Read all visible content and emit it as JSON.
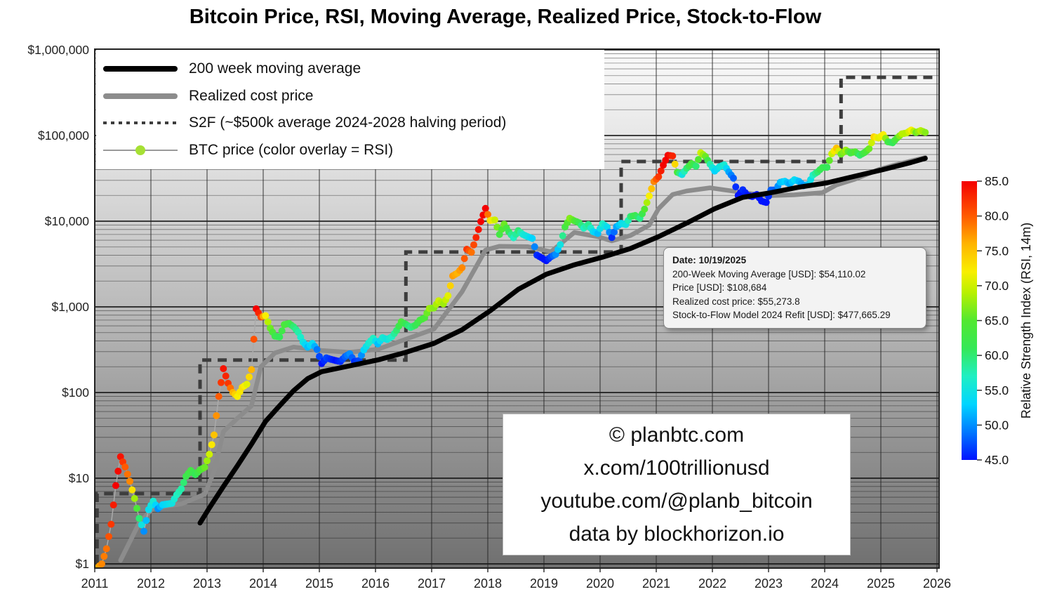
{
  "title": "Bitcoin Price, RSI, Moving Average, Realized Price, Stock-to-Flow",
  "legend": {
    "items": [
      {
        "label": "200 week moving average",
        "sample": "thick-black"
      },
      {
        "label": "Realized cost price",
        "sample": "thick-gray"
      },
      {
        "label": "S2F (~$500k average 2024-2028 halving period)",
        "sample": "dotted"
      },
      {
        "label": "BTC price (color overlay = RSI)",
        "sample": "dot-line"
      }
    ]
  },
  "tooltip": {
    "lines": [
      "Date: 10/19/2025",
      "200-Week Moving Average [USD]: $54,110.02",
      "Price [USD]: $108,684",
      "Realized cost price: $55,273.8",
      "Stock-to-Flow Model 2024 Refit [USD]: $477,665.29"
    ]
  },
  "watermark": {
    "lines": [
      "© planbtc.com",
      "x.com/100trillionusd",
      "youtube.com/@planb_bitcoin",
      "data by blockhorizon.io"
    ]
  },
  "colorbar": {
    "label": "Relative Strength Index (RSI, 14m)",
    "ticks": [
      "85.0",
      "80.0",
      "75.0",
      "70.0",
      "65.0",
      "60.0",
      "55.0",
      "50.0",
      "45.0"
    ],
    "min": 45,
    "max": 85
  },
  "chart_data": {
    "type": "scatter",
    "title": "Bitcoin Price, RSI, Moving Average, Realized Price, Stock-to-Flow",
    "log_y": true,
    "xlim": [
      2011,
      2026
    ],
    "ylim": [
      1,
      1000000
    ],
    "x_ticks": [
      2011,
      2012,
      2013,
      2014,
      2015,
      2016,
      2017,
      2018,
      2019,
      2020,
      2021,
      2022,
      2023,
      2024,
      2025,
      2026
    ],
    "y_ticks": [
      {
        "label": "$1,000,000",
        "value": 1000000
      },
      {
        "label": "$100,000",
        "value": 100000
      },
      {
        "label": "$10,000",
        "value": 10000
      },
      {
        "label": "$1,000",
        "value": 1000
      },
      {
        "label": "$100",
        "value": 100
      },
      {
        "label": "$10",
        "value": 10
      },
      {
        "label": "$1",
        "value": 1
      }
    ],
    "rsi_colormap": [
      {
        "v": 45,
        "c": "#0013ff"
      },
      {
        "v": 49,
        "c": "#0078ff"
      },
      {
        "v": 53,
        "c": "#00d5ff"
      },
      {
        "v": 57,
        "c": "#1fefc3"
      },
      {
        "v": 61,
        "c": "#35e858"
      },
      {
        "v": 65,
        "c": "#52e830"
      },
      {
        "v": 69,
        "c": "#b8f000"
      },
      {
        "v": 72,
        "c": "#f8ef00"
      },
      {
        "v": 76,
        "c": "#ffb400"
      },
      {
        "v": 80,
        "c": "#ff5a00"
      },
      {
        "v": 85,
        "c": "#f40000"
      }
    ],
    "btc_monthly": [
      [
        "2011-01",
        0.9,
        76
      ],
      [
        "2011-02",
        1.0,
        78
      ],
      [
        "2011-03",
        1.5,
        79
      ],
      [
        "2011-04",
        2.9,
        82
      ],
      [
        "2011-05",
        8.2,
        85
      ],
      [
        "2011-06",
        17.8,
        84
      ],
      [
        "2011-07",
        13.5,
        80
      ],
      [
        "2011-08",
        9.2,
        78
      ],
      [
        "2011-09",
        5.8,
        68
      ],
      [
        "2011-10",
        3.4,
        60
      ],
      [
        "2011-11",
        2.4,
        50
      ],
      [
        "2011-12",
        4.3,
        54
      ],
      [
        "2012-01",
        5.4,
        56
      ],
      [
        "2012-02",
        4.4,
        50
      ],
      [
        "2012-03",
        4.9,
        53
      ],
      [
        "2012-04",
        5.0,
        54
      ],
      [
        "2012-05",
        5.1,
        55
      ],
      [
        "2012-06",
        6.4,
        57
      ],
      [
        "2012-07",
        7.5,
        58
      ],
      [
        "2012-08",
        10.5,
        62
      ],
      [
        "2012-09",
        12.3,
        63
      ],
      [
        "2012-10",
        11.0,
        61
      ],
      [
        "2012-11",
        12.5,
        64
      ],
      [
        "2012-12",
        13.4,
        66
      ],
      [
        "2013-01",
        19,
        70
      ],
      [
        "2013-02",
        32,
        75
      ],
      [
        "2013-03",
        90,
        80
      ],
      [
        "2013-04",
        190,
        84
      ],
      [
        "2013-05",
        128,
        82
      ],
      [
        "2013-06",
        100,
        76
      ],
      [
        "2013-07",
        90,
        72
      ],
      [
        "2013-08",
        115,
        73
      ],
      [
        "2013-09",
        125,
        71
      ],
      [
        "2013-10",
        185,
        76
      ],
      [
        "2013-11",
        950,
        85
      ],
      [
        "2013-12",
        760,
        81
      ],
      [
        "2014-01",
        790,
        72
      ],
      [
        "2014-02",
        565,
        66
      ],
      [
        "2014-03",
        455,
        62
      ],
      [
        "2014-04",
        445,
        61
      ],
      [
        "2014-05",
        620,
        64
      ],
      [
        "2014-06",
        640,
        63
      ],
      [
        "2014-07",
        585,
        60
      ],
      [
        "2014-08",
        505,
        58
      ],
      [
        "2014-09",
        388,
        55
      ],
      [
        "2014-10",
        338,
        52
      ],
      [
        "2014-11",
        375,
        54
      ],
      [
        "2014-12",
        318,
        49
      ],
      [
        "2015-01",
        218,
        45
      ],
      [
        "2015-02",
        254,
        47
      ],
      [
        "2015-03",
        244,
        46
      ],
      [
        "2015-04",
        236,
        45
      ],
      [
        "2015-05",
        230,
        46
      ],
      [
        "2015-06",
        263,
        48
      ],
      [
        "2015-07",
        284,
        50
      ],
      [
        "2015-08",
        230,
        46
      ],
      [
        "2015-09",
        236,
        47
      ],
      [
        "2015-10",
        314,
        53
      ],
      [
        "2015-11",
        377,
        56
      ],
      [
        "2015-12",
        430,
        57
      ],
      [
        "2016-01",
        370,
        52
      ],
      [
        "2016-02",
        437,
        56
      ],
      [
        "2016-03",
        416,
        55
      ],
      [
        "2016-04",
        448,
        57
      ],
      [
        "2016-05",
        530,
        60
      ],
      [
        "2016-06",
        670,
        64
      ],
      [
        "2016-07",
        625,
        61
      ],
      [
        "2016-08",
        575,
        59
      ],
      [
        "2016-09",
        610,
        61
      ],
      [
        "2016-10",
        700,
        63
      ],
      [
        "2016-11",
        745,
        64
      ],
      [
        "2016-12",
        960,
        68
      ],
      [
        "2017-01",
        970,
        67
      ],
      [
        "2017-02",
        1180,
        70
      ],
      [
        "2017-03",
        1080,
        68
      ],
      [
        "2017-04",
        1350,
        71
      ],
      [
        "2017-05",
        2300,
        77
      ],
      [
        "2017-06",
        2480,
        76
      ],
      [
        "2017-07",
        2860,
        78
      ],
      [
        "2017-08",
        4700,
        82
      ],
      [
        "2017-09",
        4340,
        79
      ],
      [
        "2017-10",
        6450,
        83
      ],
      [
        "2017-11",
        9900,
        85
      ],
      [
        "2017-12",
        14100,
        85
      ],
      [
        "2018-01",
        10200,
        73
      ],
      [
        "2018-02",
        10350,
        70
      ],
      [
        "2018-03",
        7000,
        63
      ],
      [
        "2018-04",
        9240,
        66
      ],
      [
        "2018-05",
        7500,
        61
      ],
      [
        "2018-06",
        6400,
        57
      ],
      [
        "2018-07",
        7750,
        60
      ],
      [
        "2018-08",
        7000,
        56
      ],
      [
        "2018-09",
        6600,
        55
      ],
      [
        "2018-10",
        6300,
        53
      ],
      [
        "2018-11",
        4020,
        46
      ],
      [
        "2018-12",
        3740,
        45
      ],
      [
        "2019-01",
        3460,
        45
      ],
      [
        "2019-02",
        3850,
        47
      ],
      [
        "2019-03",
        4100,
        50
      ],
      [
        "2019-04",
        5320,
        55
      ],
      [
        "2019-05",
        8560,
        63
      ],
      [
        "2019-06",
        10800,
        67
      ],
      [
        "2019-07",
        10090,
        65
      ],
      [
        "2019-08",
        9600,
        62
      ],
      [
        "2019-09",
        8290,
        57
      ],
      [
        "2019-10",
        9150,
        59
      ],
      [
        "2019-11",
        7560,
        54
      ],
      [
        "2019-12",
        7190,
        52
      ],
      [
        "2020-01",
        9350,
        57
      ],
      [
        "2020-02",
        8540,
        54
      ],
      [
        "2020-03",
        6440,
        46
      ],
      [
        "2020-04",
        8640,
        51
      ],
      [
        "2020-05",
        9450,
        54
      ],
      [
        "2020-06",
        9140,
        55
      ],
      [
        "2020-07",
        11350,
        60
      ],
      [
        "2020-08",
        11650,
        62
      ],
      [
        "2020-09",
        10780,
        59
      ],
      [
        "2020-10",
        13800,
        65
      ],
      [
        "2020-11",
        19700,
        72
      ],
      [
        "2020-12",
        29000,
        78
      ],
      [
        "2021-01",
        33100,
        82
      ],
      [
        "2021-02",
        45100,
        85
      ],
      [
        "2021-03",
        58780,
        85
      ],
      [
        "2021-04",
        57750,
        83
      ],
      [
        "2021-05",
        37300,
        64
      ],
      [
        "2021-06",
        35040,
        55
      ],
      [
        "2021-07",
        41490,
        60
      ],
      [
        "2021-08",
        47100,
        64
      ],
      [
        "2021-09",
        43790,
        60
      ],
      [
        "2021-10",
        63000,
        70
      ],
      [
        "2021-11",
        57000,
        66
      ],
      [
        "2021-12",
        46200,
        58
      ],
      [
        "2022-01",
        38480,
        53
      ],
      [
        "2022-02",
        43190,
        55
      ],
      [
        "2022-03",
        45540,
        56
      ],
      [
        "2022-04",
        37630,
        51
      ],
      [
        "2022-05",
        31790,
        48
      ],
      [
        "2022-06",
        19940,
        44
      ],
      [
        "2022-07",
        23290,
        46
      ],
      [
        "2022-08",
        20050,
        45
      ],
      [
        "2022-09",
        19420,
        44
      ],
      [
        "2022-10",
        20490,
        45
      ],
      [
        "2022-11",
        17160,
        43
      ],
      [
        "2022-12",
        16540,
        44
      ],
      [
        "2023-01",
        23130,
        48
      ],
      [
        "2023-02",
        23140,
        48
      ],
      [
        "2023-03",
        28470,
        52
      ],
      [
        "2023-04",
        29250,
        53
      ],
      [
        "2023-05",
        27220,
        51
      ],
      [
        "2023-06",
        30480,
        54
      ],
      [
        "2023-07",
        29230,
        52
      ],
      [
        "2023-08",
        25930,
        50
      ],
      [
        "2023-09",
        26960,
        52
      ],
      [
        "2023-10",
        34650,
        57
      ],
      [
        "2023-11",
        37720,
        60
      ],
      [
        "2023-12",
        42280,
        62
      ],
      [
        "2024-01",
        42580,
        61
      ],
      [
        "2024-02",
        61200,
        70
      ],
      [
        "2024-03",
        71330,
        75
      ],
      [
        "2024-04",
        60640,
        66
      ],
      [
        "2024-05",
        67500,
        68
      ],
      [
        "2024-06",
        62680,
        63
      ],
      [
        "2024-07",
        64620,
        65
      ],
      [
        "2024-08",
        58970,
        60
      ],
      [
        "2024-09",
        63330,
        63
      ],
      [
        "2024-10",
        70220,
        66
      ],
      [
        "2024-11",
        96400,
        74
      ],
      [
        "2024-12",
        93430,
        71
      ],
      [
        "2025-01",
        102400,
        72
      ],
      [
        "2025-02",
        84350,
        63
      ],
      [
        "2025-03",
        82550,
        61
      ],
      [
        "2025-04",
        94180,
        65
      ],
      [
        "2025-05",
        104600,
        69
      ],
      [
        "2025-06",
        107140,
        69
      ],
      [
        "2025-07",
        115760,
        72
      ],
      [
        "2025-08",
        108240,
        66
      ],
      [
        "2025-09",
        114060,
        69
      ],
      [
        "2025-10",
        108684,
        67
      ]
    ],
    "wma_200w": [
      [
        "2012-11",
        3.0
      ],
      [
        "2013-01",
        4.5
      ],
      [
        "2013-04",
        8
      ],
      [
        "2013-07",
        14
      ],
      [
        "2013-10",
        25
      ],
      [
        "2014-01",
        46
      ],
      [
        "2014-04",
        70
      ],
      [
        "2014-07",
        105
      ],
      [
        "2014-10",
        145
      ],
      [
        "2015-01",
        175
      ],
      [
        "2015-07",
        205
      ],
      [
        "2016-01",
        240
      ],
      [
        "2016-07",
        295
      ],
      [
        "2017-01",
        375
      ],
      [
        "2017-07",
        540
      ],
      [
        "2018-01",
        900
      ],
      [
        "2018-07",
        1600
      ],
      [
        "2019-01",
        2400
      ],
      [
        "2019-07",
        3100
      ],
      [
        "2020-01",
        3800
      ],
      [
        "2020-07",
        4800
      ],
      [
        "2021-01",
        6600
      ],
      [
        "2021-07",
        9500
      ],
      [
        "2022-01",
        14000
      ],
      [
        "2022-07",
        19000
      ],
      [
        "2023-01",
        21500
      ],
      [
        "2023-07",
        25000
      ],
      [
        "2024-01",
        28000
      ],
      [
        "2024-07",
        33500
      ],
      [
        "2025-01",
        40000
      ],
      [
        "2025-07",
        48500
      ],
      [
        "2025-10",
        54110.02
      ]
    ],
    "realized_price": [
      [
        "2011-06",
        1.1
      ],
      [
        "2011-10",
        3.0
      ],
      [
        "2012-01",
        4.5
      ],
      [
        "2012-07",
        5.0
      ],
      [
        "2012-12",
        6.5
      ],
      [
        "2013-02",
        12
      ],
      [
        "2013-04",
        35
      ],
      [
        "2013-07",
        50
      ],
      [
        "2013-10",
        70
      ],
      [
        "2013-12",
        200
      ],
      [
        "2014-03",
        290
      ],
      [
        "2014-07",
        340
      ],
      [
        "2015-01",
        310
      ],
      [
        "2015-07",
        295
      ],
      [
        "2016-01",
        320
      ],
      [
        "2016-07",
        420
      ],
      [
        "2017-01",
        550
      ],
      [
        "2017-07",
        1500
      ],
      [
        "2017-12",
        4600
      ],
      [
        "2018-03",
        5100
      ],
      [
        "2018-09",
        5050
      ],
      [
        "2019-02",
        4400
      ],
      [
        "2019-07",
        7400
      ],
      [
        "2019-12",
        6600
      ],
      [
        "2020-03",
        5900
      ],
      [
        "2020-07",
        6800
      ],
      [
        "2020-11",
        9000
      ],
      [
        "2021-01",
        14000
      ],
      [
        "2021-04",
        20500
      ],
      [
        "2021-07",
        22500
      ],
      [
        "2021-12",
        24500
      ],
      [
        "2022-06",
        22000
      ],
      [
        "2022-12",
        19800
      ],
      [
        "2023-06",
        20300
      ],
      [
        "2023-12",
        21500
      ],
      [
        "2024-03",
        26500
      ],
      [
        "2024-07",
        31000
      ],
      [
        "2024-12",
        40000
      ],
      [
        "2025-04",
        46000
      ],
      [
        "2025-07",
        50500
      ],
      [
        "2025-10",
        55273.8
      ]
    ],
    "s2f_steps": [
      [
        "2011-01",
        1.0
      ],
      [
        "2011-01",
        6.6
      ],
      [
        "2012-11",
        6.6
      ],
      [
        "2012-11",
        239
      ],
      [
        "2016-07",
        239
      ],
      [
        "2016-07",
        4370
      ],
      [
        "2020-05",
        4370
      ],
      [
        "2020-05",
        49700
      ],
      [
        "2024-04",
        49700
      ],
      [
        "2024-04",
        477665.29
      ],
      [
        "2025-12",
        477665.29
      ]
    ]
  }
}
